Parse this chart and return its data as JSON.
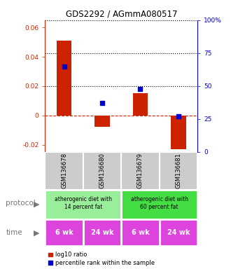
{
  "title": "GDS2292 / AGmmA080517",
  "samples": [
    "GSM136678",
    "GSM136680",
    "GSM136679",
    "GSM136681"
  ],
  "log10_ratio": [
    0.051,
    -0.008,
    0.015,
    -0.023
  ],
  "percentile_rank_pct": [
    65,
    37,
    48,
    27
  ],
  "ylim_left": [
    -0.025,
    0.065
  ],
  "ylim_right": [
    0,
    100
  ],
  "yticks_left": [
    -0.02,
    0.0,
    0.02,
    0.04,
    0.06
  ],
  "yticks_right": [
    0,
    25,
    50,
    75,
    100
  ],
  "ytick_labels_left": [
    "-0.02",
    "0",
    "0.02",
    "0.04",
    "0.06"
  ],
  "ytick_labels_right": [
    "0",
    "25",
    "50",
    "75",
    "100%"
  ],
  "bar_color": "#cc2200",
  "dot_color": "#0000cc",
  "protocol_groups": [
    {
      "label": "atherogenic diet with\n14 percent fat",
      "cols": [
        0,
        1
      ],
      "color": "#99ee99"
    },
    {
      "label": "atherogenic diet with\n60 percent fat",
      "cols": [
        2,
        3
      ],
      "color": "#44dd44"
    }
  ],
  "time_labels": [
    "6 wk",
    "24 wk",
    "6 wk",
    "24 wk"
  ],
  "time_color": "#dd44dd",
  "sample_bg_color": "#cccccc",
  "zero_line_color": "#cc2200",
  "dotted_line_color": "#000000",
  "legend_red_label": "log10 ratio",
  "legend_blue_label": "percentile rank within the sample",
  "protocol_label": "protocol",
  "time_label": "time"
}
